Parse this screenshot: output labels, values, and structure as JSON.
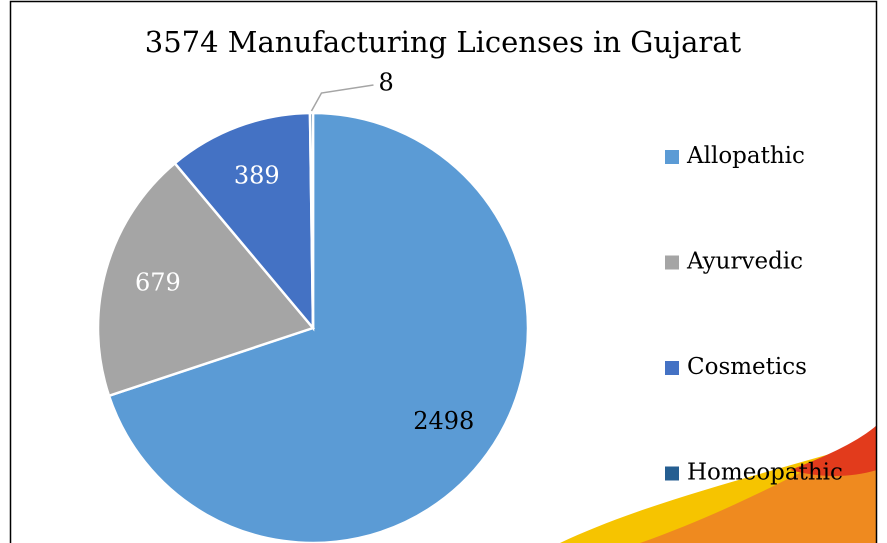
{
  "chart_data": {
    "type": "pie",
    "title": "3574 Manufacturing Licenses in Gujarat",
    "categories": [
      "Allopathic",
      "Ayurvedic",
      "Cosmetics",
      "Homeopathic"
    ],
    "values": [
      2498,
      679,
      389,
      8
    ],
    "colors": [
      "#5b9bd5",
      "#a5a5a5",
      "#4472c4",
      "#255e91"
    ],
    "legend": "right"
  }
}
